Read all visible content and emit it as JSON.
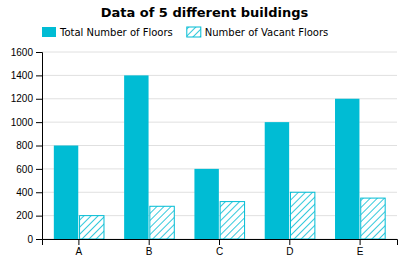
{
  "chart_data": {
    "type": "bar",
    "title": "Data of 5 different buildings",
    "categories": [
      "A",
      "B",
      "C",
      "D",
      "E"
    ],
    "series": [
      {
        "name": "Total Number of Floors",
        "color": "#00BCD4",
        "values": [
          800,
          1400,
          600,
          1000,
          1200
        ]
      },
      {
        "name": "Number of Vacant Floors",
        "color": "#00BCD4",
        "values": [
          200,
          280,
          320,
          400,
          350
        ]
      }
    ],
    "ylim": [
      0,
      1600
    ],
    "yticks": [
      0,
      200,
      400,
      600,
      800,
      1000,
      1200,
      1400,
      1600
    ],
    "grid": true,
    "legend": "top left"
  }
}
